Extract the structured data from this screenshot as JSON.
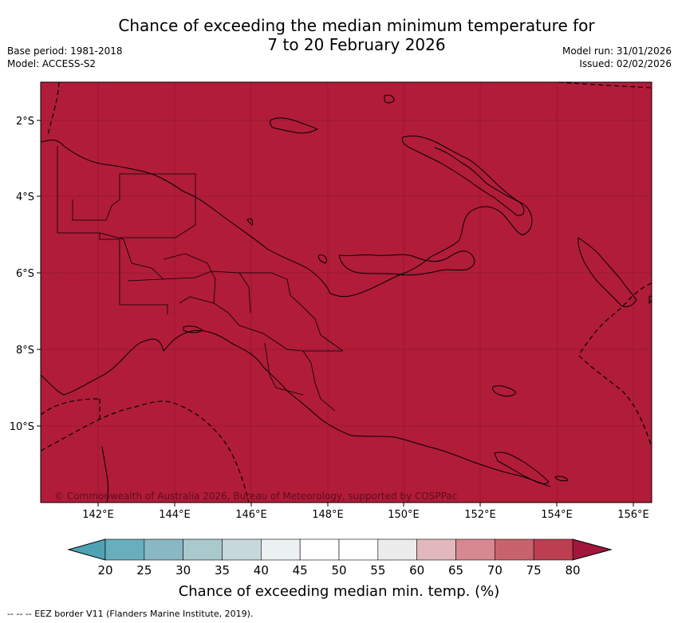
{
  "title": {
    "line1": "Chance of exceeding the median minimum temperature for",
    "line2": "7 to 20 February 2026"
  },
  "meta_left": {
    "base_period": "Base period: 1981-2018",
    "model": "Model: ACCESS-S2"
  },
  "meta_right": {
    "model_run": "Model run: 31/01/2026",
    "issued": "Issued: 02/02/2026"
  },
  "map": {
    "fill_color": "#b11c39",
    "latitude_labels": [
      "2°S",
      "4°S",
      "6°S",
      "8°S",
      "10°S"
    ],
    "longitude_labels": [
      "142°E",
      "144°E",
      "146°E",
      "148°E",
      "150°E",
      "152°E",
      "154°E",
      "156°E"
    ],
    "copyright": "© Commonwealth of Australia 2026, Bureau of Meteorology, supported by COSPPac"
  },
  "colorbar": {
    "ticks": [
      "20",
      "25",
      "30",
      "35",
      "40",
      "45",
      "50",
      "55",
      "60",
      "65",
      "70",
      "75",
      "80"
    ],
    "colors": [
      "#68aebd",
      "#89b8c4",
      "#a9c9cd",
      "#c7d8dc",
      "#ecf1f2",
      "#ffffff",
      "#ffffff",
      "#ececec",
      "#e2b8bd",
      "#d88891",
      "#c8636d",
      "#bb3f51"
    ],
    "low_extend_color": "#4ea2b4",
    "high_extend_color": "#a1163a",
    "label": "Chance of exceeding median min. temp. (%)"
  },
  "footer": "--  --  -- EEZ border V11 (Flanders Marine Institute, 2019)."
}
